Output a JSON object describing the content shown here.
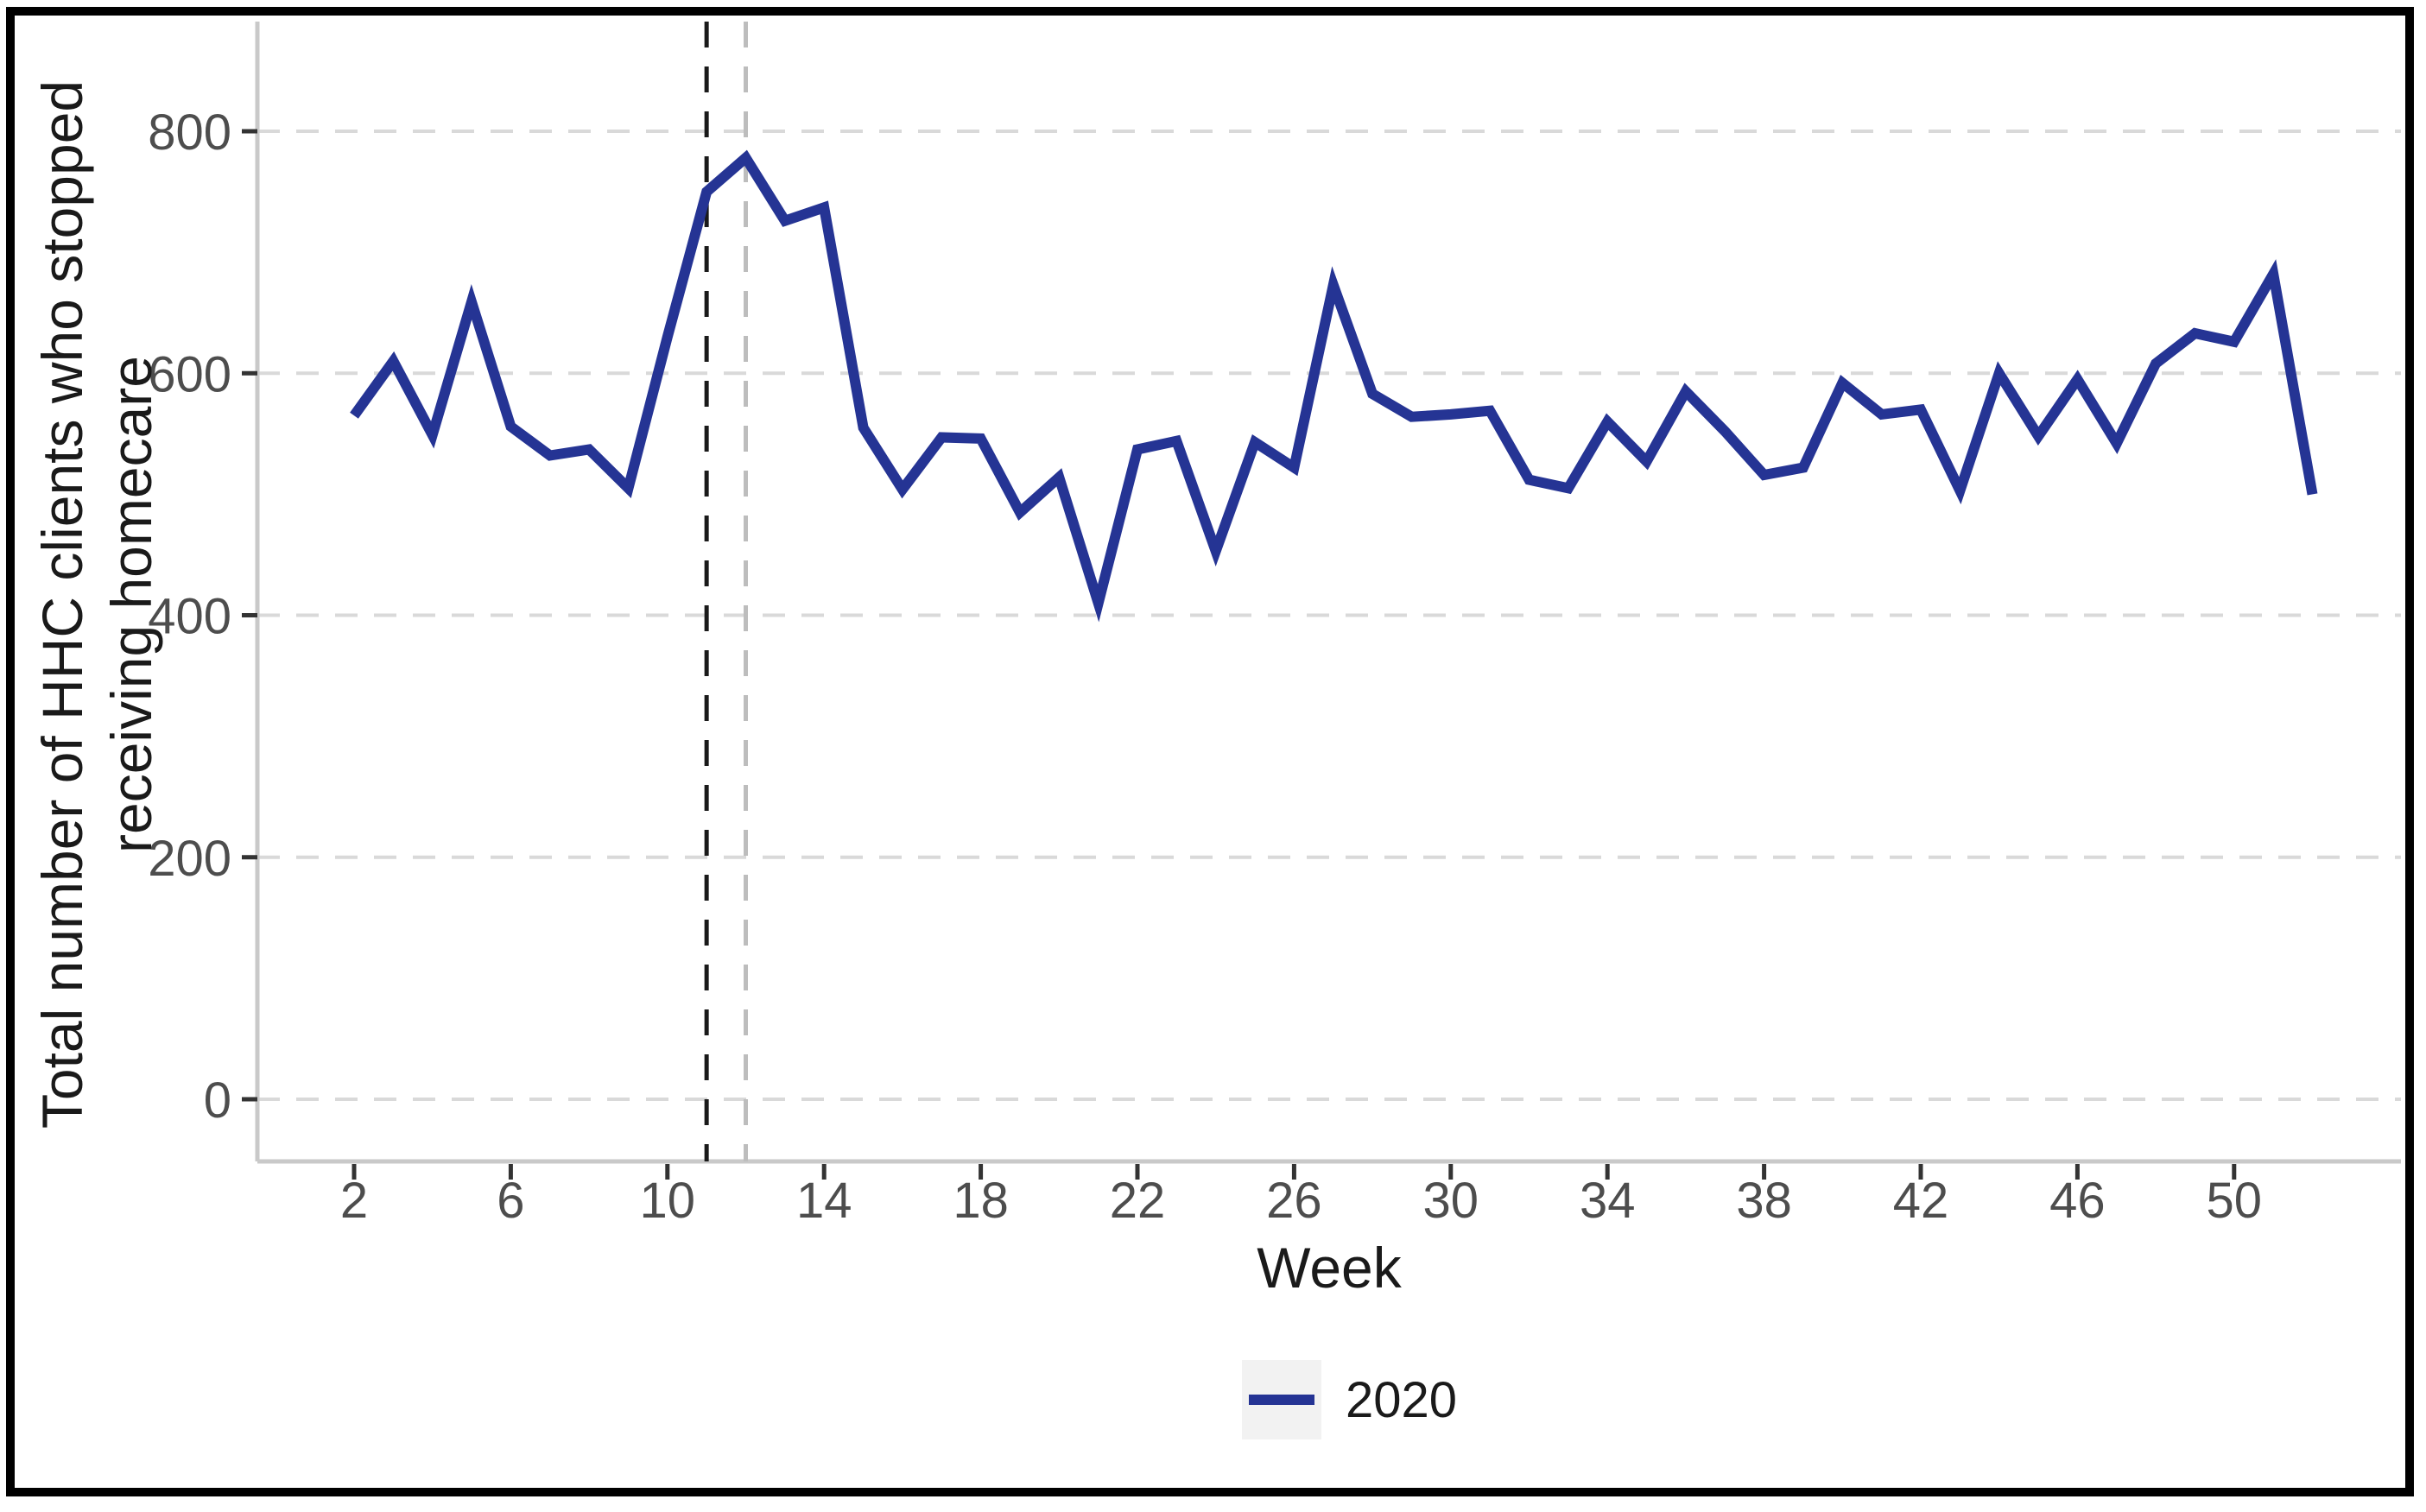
{
  "figure": {
    "xlabel": "Week",
    "ylabel_line1": "Total number of HHC clients who stopped",
    "ylabel_line2": "receiving homecare",
    "legend": {
      "label": "2020"
    }
  },
  "chart_data": {
    "type": "line",
    "title": "",
    "xlabel": "Week",
    "ylabel": "Total number of HHC clients who stopped receiving homecare",
    "x": [
      2,
      3,
      4,
      5,
      6,
      7,
      8,
      9,
      10,
      11,
      12,
      13,
      14,
      15,
      16,
      17,
      18,
      19,
      20,
      21,
      22,
      23,
      24,
      25,
      26,
      27,
      28,
      29,
      30,
      31,
      32,
      33,
      34,
      35,
      36,
      37,
      38,
      39,
      40,
      41,
      42,
      43,
      44,
      45,
      46,
      47,
      48,
      49,
      50,
      51,
      52
    ],
    "series": [
      {
        "name": "2020",
        "color": "#253494",
        "values": [
          565,
          610,
          549,
          659,
          556,
          532,
          537,
          505,
          630,
          750,
          778,
          726,
          737,
          555,
          504,
          547,
          546,
          485,
          514,
          410,
          537,
          544,
          453,
          543,
          522,
          673,
          583,
          564,
          566,
          569,
          512,
          505,
          560,
          527,
          585,
          552,
          516,
          522,
          592,
          566,
          570,
          503,
          600,
          548,
          595,
          542,
          608,
          633,
          626,
          682,
          500
        ]
      }
    ],
    "x_ticks": [
      2,
      6,
      10,
      14,
      18,
      22,
      26,
      30,
      34,
      38,
      42,
      46,
      50
    ],
    "y_ticks": [
      0,
      200,
      400,
      600,
      800
    ],
    "ylim": [
      0,
      800
    ],
    "xlim": [
      2,
      52
    ],
    "grid": "horizontal-dashed",
    "legend_position": "bottom-center",
    "reference_lines": [
      {
        "x": 11,
        "style": "dashed",
        "color": "#1a1a1a"
      },
      {
        "x": 12,
        "style": "dashed",
        "color": "#bdbdbd"
      }
    ],
    "colors": {
      "line": "#253494",
      "grid": "#d9d9d9",
      "axis_line": "#c9c9c9",
      "tick_mark": "#333333",
      "tick_label": "#4d4d4d",
      "title_text": "#1a1a1a",
      "vline_black": "#1a1a1a",
      "vline_gray": "#bdbdbd",
      "legend_key_bg": "#f2f2f2",
      "frame": "#000000"
    }
  }
}
